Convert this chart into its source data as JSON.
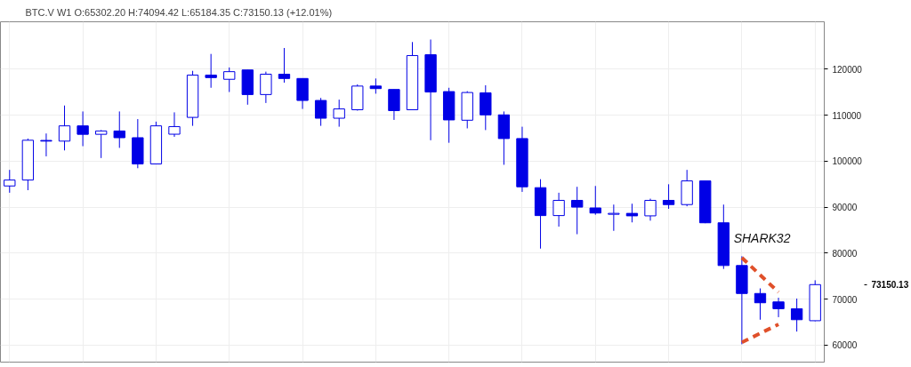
{
  "chart_data": {
    "type": "candlestick",
    "title": "BTC.V  W1  O:65302.20  H:74094.42  L:65184.35  C:73150.13  (+12.01%)",
    "categories": [
      null,
      null,
      null,
      null,
      null,
      null,
      null,
      null,
      null,
      null,
      null,
      null,
      null,
      null,
      null,
      null,
      null,
      null,
      null,
      null,
      null,
      null,
      null,
      null,
      null,
      null,
      null,
      null,
      null,
      null,
      null,
      null,
      null,
      null,
      null,
      null,
      null,
      null,
      null,
      null,
      null,
      null,
      null,
      null,
      null
    ],
    "color": "#0000e6",
    "ohlc": [
      [
        94600,
        98100,
        93130,
        95890
      ],
      [
        95890,
        104910,
        93680,
        104540
      ],
      [
        104500,
        106010,
        101040,
        104350
      ],
      [
        104350,
        112090,
        102330,
        107670
      ],
      [
        107670,
        110800,
        103250,
        105830
      ],
      [
        105830,
        106750,
        100670,
        106560
      ],
      [
        106560,
        110800,
        102880,
        105090
      ],
      [
        105090,
        109140,
        98460,
        99390
      ],
      [
        99390,
        108590,
        99390,
        107670
      ],
      [
        105850,
        110610,
        105280,
        107510
      ],
      [
        109510,
        119630,
        107670,
        118710
      ],
      [
        118710,
        123310,
        115950,
        118160
      ],
      [
        117790,
        120370,
        115030,
        119450
      ],
      [
        119820,
        119820,
        112270,
        114480
      ],
      [
        114480,
        119450,
        112640,
        118900
      ],
      [
        118900,
        124600,
        117060,
        117970
      ],
      [
        117970,
        117970,
        111350,
        113190
      ],
      [
        113190,
        113740,
        107670,
        109330
      ],
      [
        109330,
        113370,
        107480,
        111350
      ],
      [
        111170,
        116690,
        110980,
        116320
      ],
      [
        116320,
        117970,
        114660,
        115770
      ],
      [
        115580,
        115580,
        108960,
        110980
      ],
      [
        111170,
        125890,
        111170,
        122950
      ],
      [
        123130,
        126440,
        104540,
        115030
      ],
      [
        115120,
        115950,
        103990,
        108960
      ],
      [
        108890,
        115210,
        107120,
        114920
      ],
      [
        114850,
        116500,
        106750,
        110060
      ],
      [
        110060,
        110800,
        99200,
        104910
      ],
      [
        104910,
        107480,
        93310,
        94420
      ],
      [
        94230,
        96070,
        80980,
        88160
      ],
      [
        88160,
        93130,
        85760,
        91470
      ],
      [
        91470,
        94420,
        84110,
        90000
      ],
      [
        89820,
        94600,
        88340,
        88710
      ],
      [
        88440,
        90550,
        84840,
        88640
      ],
      [
        88640,
        90740,
        86680,
        88100
      ],
      [
        88100,
        91840,
        87050,
        91470
      ],
      [
        91470,
        94970,
        89630,
        90550
      ],
      [
        90550,
        98100,
        90180,
        95700
      ],
      [
        95700,
        95700,
        86500,
        86590
      ],
      [
        86590,
        90550,
        76560,
        77300
      ],
      [
        77300,
        79320,
        60180,
        71220
      ],
      [
        71220,
        72330,
        65520,
        69200
      ],
      [
        69390,
        70300,
        66070,
        67910
      ],
      [
        67910,
        70120,
        62940,
        65520
      ],
      [
        65302.2,
        74094.42,
        65184.35,
        73150.13
      ]
    ],
    "series": [
      {
        "type": "line",
        "color": "#e0502a",
        "line_style": "dashed",
        "values": [
          null,
          null,
          null,
          null,
          null,
          null,
          null,
          null,
          null,
          null,
          null,
          null,
          null,
          null,
          null,
          null,
          null,
          null,
          null,
          null,
          null,
          null,
          null,
          null,
          null,
          null,
          null,
          null,
          null,
          null,
          null,
          null,
          null,
          null,
          null,
          null,
          null,
          null,
          null,
          null,
          79000,
          null,
          71500,
          null,
          null
        ]
      },
      {
        "type": "line",
        "color": "#e0502a",
        "line_style": "dashed",
        "values": [
          null,
          null,
          null,
          null,
          null,
          null,
          null,
          null,
          null,
          null,
          null,
          null,
          null,
          null,
          null,
          null,
          null,
          null,
          null,
          null,
          null,
          null,
          null,
          null,
          null,
          null,
          null,
          null,
          null,
          null,
          null,
          null,
          null,
          null,
          null,
          null,
          null,
          null,
          null,
          null,
          60600,
          null,
          64500,
          null,
          null
        ]
      }
    ],
    "annotations": [
      "SHARK32",
      "73150.13"
    ],
    "ylim": [
      56300,
      130300
    ],
    "yticks": [
      60000,
      70000,
      80000,
      90000,
      100000,
      110000,
      120000
    ],
    "grid": true,
    "tick_labels": "y"
  }
}
